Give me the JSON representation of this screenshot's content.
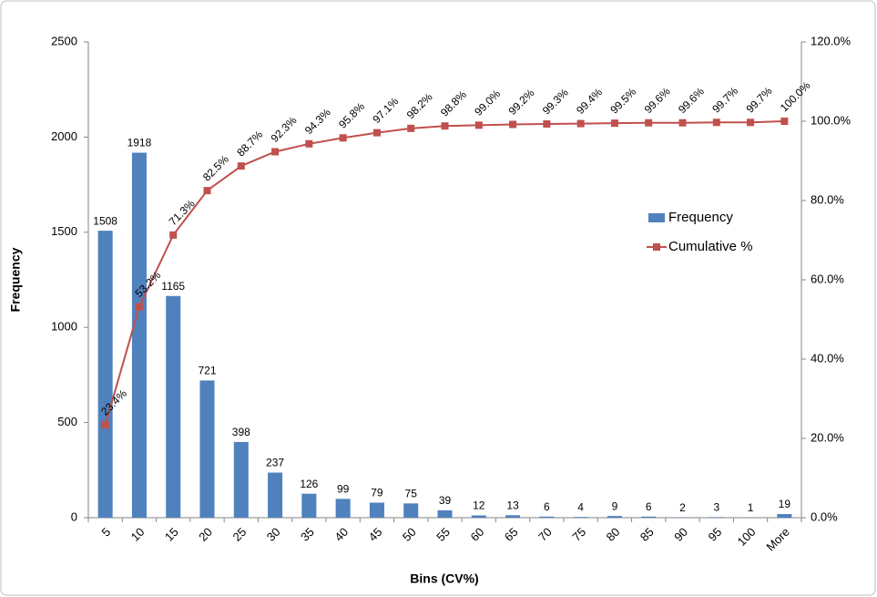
{
  "chart_data": {
    "type": "bar",
    "x_label": "Bins (CV%)",
    "y_label": "Frequency",
    "categories": [
      "5",
      "10",
      "15",
      "20",
      "25",
      "30",
      "35",
      "40",
      "45",
      "50",
      "55",
      "60",
      "65",
      "70",
      "75",
      "80",
      "85",
      "90",
      "95",
      "100",
      "More"
    ],
    "series": [
      {
        "name": "Frequency",
        "type": "bar",
        "color": "#4f81bd",
        "values": [
          1508,
          1918,
          1165,
          721,
          398,
          237,
          126,
          99,
          79,
          75,
          39,
          12,
          13,
          6,
          4,
          9,
          6,
          2,
          3,
          1,
          19
        ]
      },
      {
        "name": "Cumulative %",
        "type": "line",
        "axis": "y2",
        "color": "#c0504d",
        "values": [
          23.4,
          53.2,
          71.3,
          82.5,
          88.7,
          92.3,
          94.3,
          95.8,
          97.1,
          98.2,
          98.8,
          99.0,
          99.2,
          99.3,
          99.4,
          99.5,
          99.6,
          99.6,
          99.7,
          99.7,
          100.0
        ],
        "value_labels": [
          "23.4%",
          "53.2%",
          "71.3%",
          "82.5%",
          "88.7%",
          "92.3%",
          "94.3%",
          "95.8%",
          "97.1%",
          "98.2%",
          "98.8%",
          "99.0%",
          "99.2%",
          "99.3%",
          "99.4%",
          "99.5%",
          "99.6%",
          "99.6%",
          "99.7%",
          "99.7%",
          "100.0%"
        ]
      }
    ],
    "ylim": [
      0,
      2500
    ],
    "yticks": [
      0,
      500,
      1000,
      1500,
      2000,
      2500
    ],
    "y2lim": [
      0,
      120
    ],
    "y2ticks": [
      {
        "value": 0,
        "label": "0.0%"
      },
      {
        "value": 20,
        "label": "20.0%"
      },
      {
        "value": 40,
        "label": "40.0%"
      },
      {
        "value": 60,
        "label": "60.0%"
      },
      {
        "value": 80,
        "label": "80.0%"
      },
      {
        "value": 100,
        "label": "100.0%"
      },
      {
        "value": 120,
        "label": "120.0%"
      }
    ],
    "legend": "right",
    "grid": false
  }
}
